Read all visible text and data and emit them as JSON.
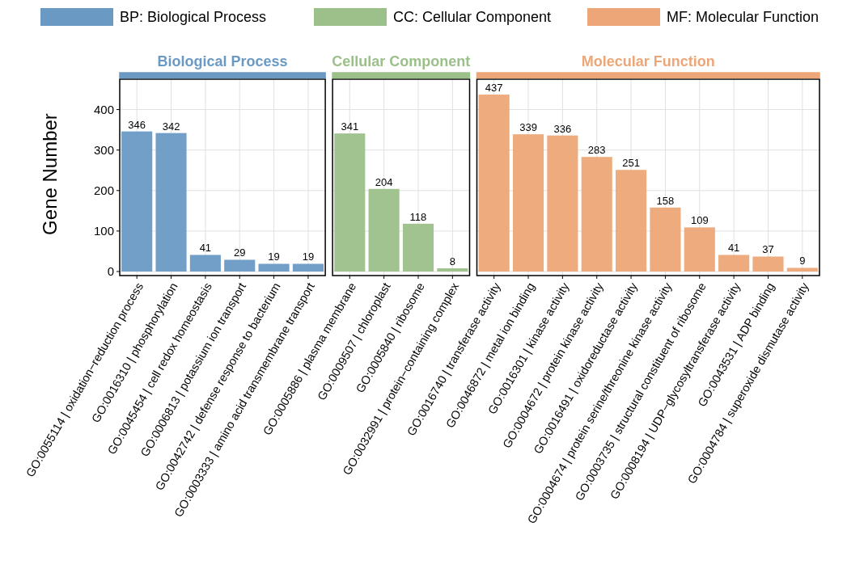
{
  "chart_data": [
    {
      "type": "bar",
      "title": "Biological Process",
      "ylabel": "Gene Number",
      "categories": [
        "GO:0055114 | oxidation−reduction process",
        "GO:0016310 | phosphorylation",
        "GO:0045454 | cell redox homeostasis",
        "GO:0006813 | potassium ion transport",
        "GO:0042742 | defense response to bacterium",
        "GO:0003333 | amino acid transmembrane transport"
      ],
      "series": [
        {
          "name": "BP: Biological Process",
          "color": "#6a9ac4",
          "values": [
            346,
            342,
            41,
            29,
            19,
            19
          ]
        }
      ],
      "ylim": [
        -10,
        475
      ],
      "yticks": [
        0,
        100,
        200,
        300,
        400
      ],
      "grid": true,
      "data_labels": true,
      "legend": "top"
    },
    {
      "type": "bar",
      "title": "Cellular Component",
      "categories": [
        "GO:0005886 | plasma membrane",
        "GO:0009507 | chloroplast",
        "GO:0005840 | ribosome",
        "GO:0032991 | protein−containing complex"
      ],
      "series": [
        {
          "name": "CC: Cellular Component",
          "color": "#9cc08a",
          "values": [
            341,
            204,
            118,
            8
          ]
        }
      ],
      "ylim": [
        -10,
        475
      ],
      "yticks": [
        0,
        100,
        200,
        300,
        400
      ],
      "grid": true,
      "data_labels": true,
      "legend": "top",
      "tick_labels": "x"
    },
    {
      "type": "bar",
      "title": "Molecular Function",
      "categories": [
        "GO:0016740 | transferase activity",
        "GO:0046872 | metal ion binding",
        "GO:0016301 | kinase activity",
        "GO:0004672 | protein kinase activity",
        "GO:0016491 | oxidoreductase activity",
        "GO:0004674 | protein serine/threonine kinase activity",
        "GO:0003735 | structural constituent of ribosome",
        "GO:0008194 | UDP−glycosyltransferase activity",
        "GO:0043531 | ADP binding",
        "GO:0004784 | superoxide dismutase activity"
      ],
      "series": [
        {
          "name": "MF: Molecular Function",
          "color": "#eda677",
          "values": [
            437,
            339,
            336,
            283,
            251,
            158,
            109,
            41,
            37,
            9
          ]
        }
      ],
      "ylim": [
        -10,
        475
      ],
      "yticks": [
        0,
        100,
        200,
        300,
        400
      ],
      "grid": true,
      "data_labels": true,
      "legend": "top",
      "tick_labels": "x"
    }
  ]
}
